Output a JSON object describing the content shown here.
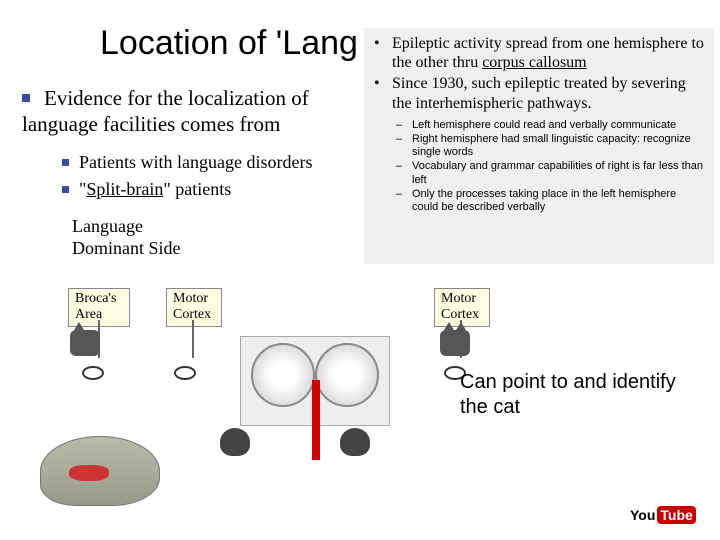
{
  "slide": {
    "title": "Location of 'Lang",
    "mainBullet": "Evidence for the localization of language facilities comes from",
    "subBullets": [
      "Patients with language disorders",
      {
        "prefix": "\"",
        "underline": "Split-brain",
        "suffix": "\" patients"
      }
    ],
    "langSide": [
      "Language",
      "Dominant Side"
    ]
  },
  "overlay": {
    "bullets": [
      {
        "text": "Epileptic activity spread from one hemisphere to the other thru ",
        "uword": "corpus callosum"
      },
      {
        "text": "Since 1930, such epileptic treated by severing the interhemispheric pathways."
      }
    ],
    "sub": [
      "Left hemisphere could read and verbally communicate",
      "Right hemisphere had small linguistic capacity: recognize single words",
      "Vocabulary and grammar capabilities of right is far less than left",
      "Only the processes taking place in the left hemisphere could be described verbally"
    ]
  },
  "labels": {
    "broca": "Broca's\nArea",
    "motor": "Motor\nCortex"
  },
  "identify": "Can point to and identify the cat",
  "youtube": {
    "left": "You",
    "right": "Tube"
  }
}
